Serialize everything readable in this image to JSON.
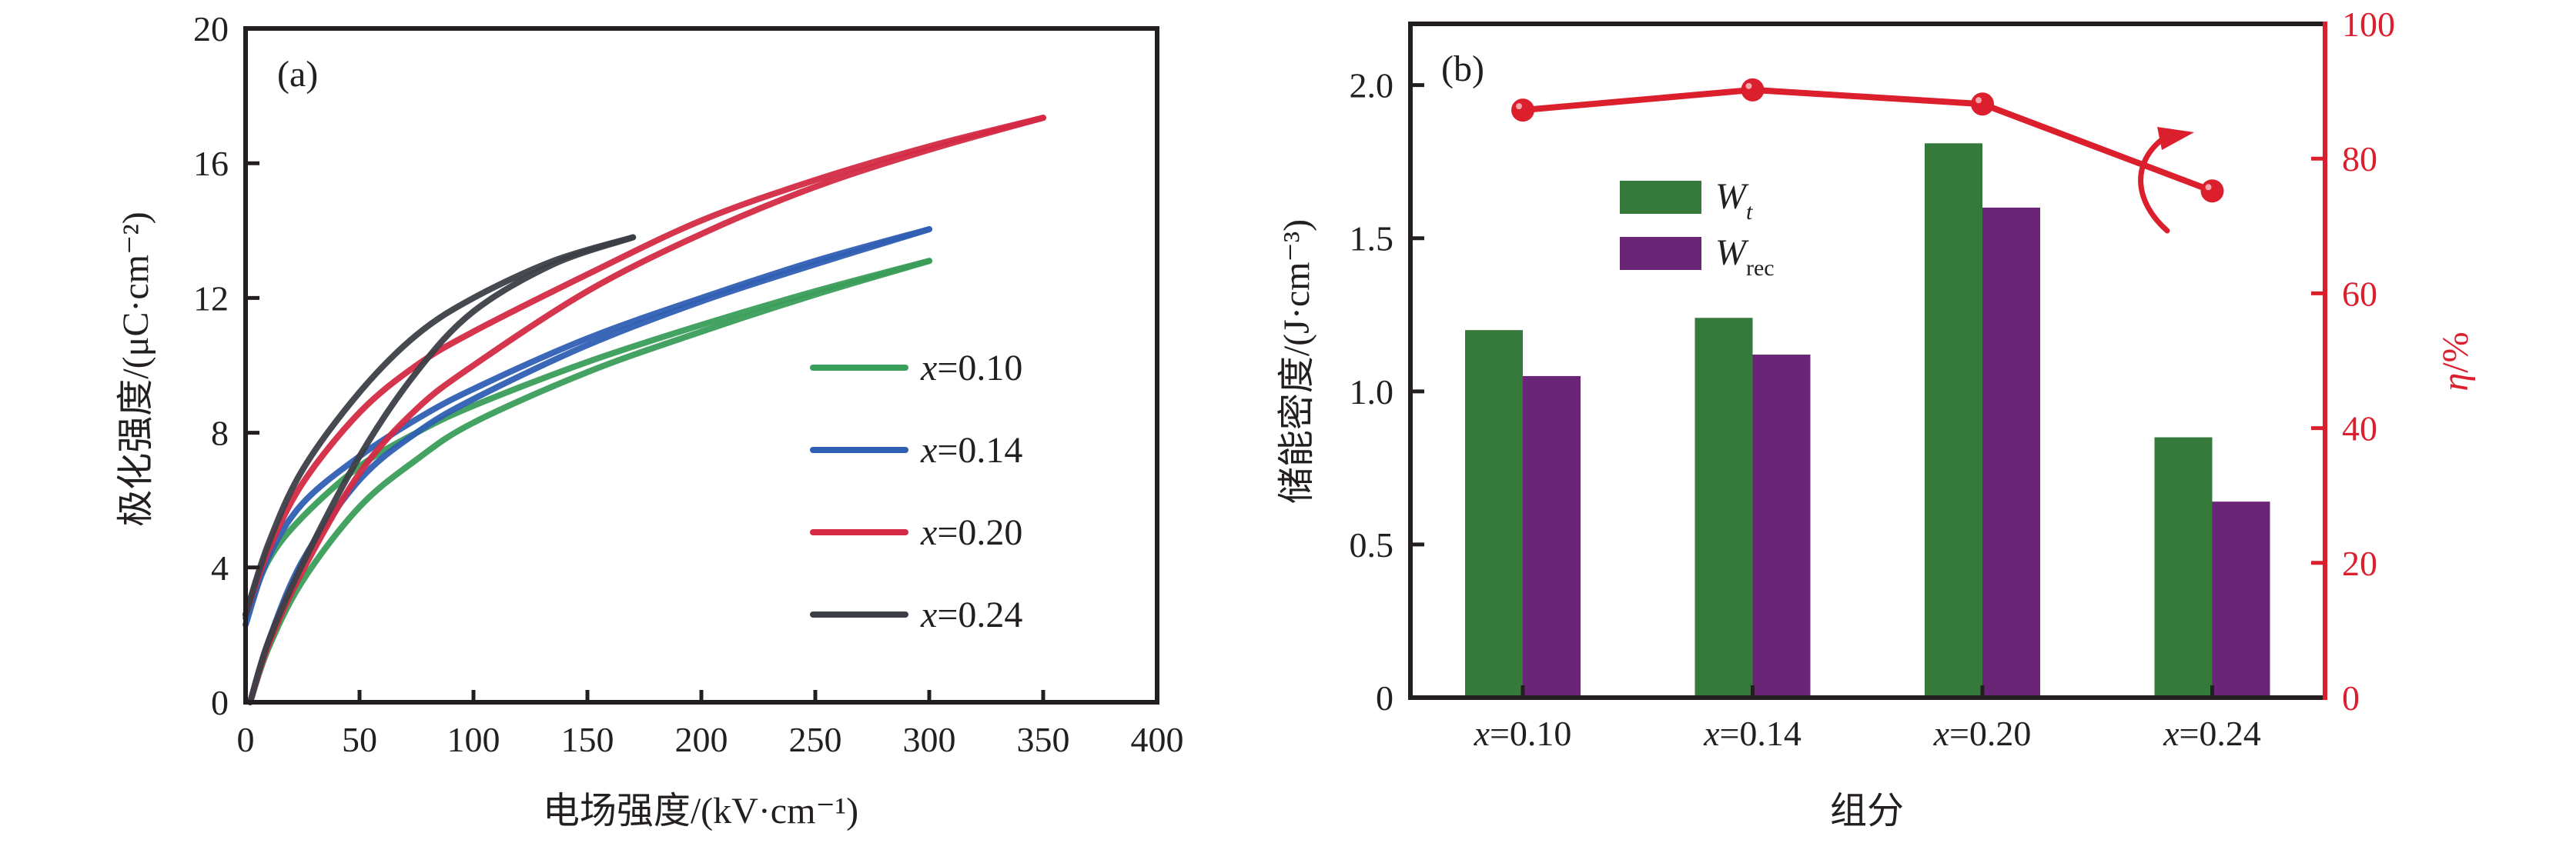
{
  "figure": {
    "panel_a_tag": "(a)",
    "panel_b_tag": "(b)"
  },
  "chart_data": [
    {
      "id": "a",
      "type": "line",
      "title": "",
      "xlabel": "电场强度/(kV·cm⁻¹)",
      "ylabel": "极化强度/(μC·cm⁻²)",
      "xlim": [
        0,
        400
      ],
      "ylim": [
        0,
        20
      ],
      "xticks": [
        0,
        50,
        100,
        150,
        200,
        250,
        300,
        350,
        400
      ],
      "yticks": [
        0,
        4,
        8,
        12,
        16,
        20
      ],
      "xtick_labels": [
        "0",
        "50",
        "100",
        "150",
        "200",
        "250",
        "300",
        "350",
        "400"
      ],
      "ytick_labels": [
        "0",
        "4",
        "8",
        "12",
        "16",
        "20"
      ],
      "grid": false,
      "legend_position": "center-right",
      "series": [
        {
          "name": "x=0.10",
          "legend_var": "x",
          "legend_value": "=0.10",
          "color": "#3a9e5a",
          "charge": [
            [
              2,
              0
            ],
            [
              10,
              1.6
            ],
            [
              25,
              3.6
            ],
            [
              50,
              5.8
            ],
            [
              75,
              7.2
            ],
            [
              100,
              8.3
            ],
            [
              150,
              9.8
            ],
            [
              200,
              11.0
            ],
            [
              250,
              12.1
            ],
            [
              300,
              13.1
            ]
          ],
          "discharge": [
            [
              300,
              13.1
            ],
            [
              250,
              12.2
            ],
            [
              200,
              11.2
            ],
            [
              150,
              10.1
            ],
            [
              100,
              8.8
            ],
            [
              75,
              8.0
            ],
            [
              50,
              7.0
            ],
            [
              25,
              5.5
            ],
            [
              10,
              4.2
            ],
            [
              0,
              2.5
            ]
          ]
        },
        {
          "name": "x=0.14",
          "legend_var": "x",
          "legend_value": "=0.14",
          "color": "#2f5fb3",
          "charge": [
            [
              2,
              0
            ],
            [
              10,
              1.8
            ],
            [
              25,
              4.2
            ],
            [
              50,
              6.6
            ],
            [
              75,
              8.0
            ],
            [
              100,
              9.0
            ],
            [
              150,
              10.6
            ],
            [
              200,
              11.9
            ],
            [
              250,
              13.0
            ],
            [
              300,
              14.04
            ]
          ],
          "discharge": [
            [
              300,
              14.04
            ],
            [
              250,
              13.1
            ],
            [
              200,
              12.0
            ],
            [
              150,
              10.8
            ],
            [
              100,
              9.3
            ],
            [
              75,
              8.4
            ],
            [
              50,
              7.3
            ],
            [
              25,
              5.9
            ],
            [
              10,
              4.3
            ],
            [
              0,
              2.3
            ]
          ]
        },
        {
          "name": "x=0.20",
          "legend_var": "x",
          "legend_value": "=0.20",
          "color": "#d42a45",
          "charge": [
            [
              2,
              0
            ],
            [
              10,
              1.7
            ],
            [
              25,
              3.9
            ],
            [
              50,
              6.8
            ],
            [
              75,
              8.7
            ],
            [
              100,
              10.0
            ],
            [
              150,
              12.2
            ],
            [
              200,
              13.9
            ],
            [
              250,
              15.3
            ],
            [
              300,
              16.4
            ],
            [
              350,
              17.35
            ]
          ],
          "discharge": [
            [
              350,
              17.35
            ],
            [
              300,
              16.5
            ],
            [
              250,
              15.5
            ],
            [
              200,
              14.3
            ],
            [
              150,
              12.7
            ],
            [
              100,
              11.0
            ],
            [
              75,
              10.0
            ],
            [
              50,
              8.6
            ],
            [
              25,
              6.5
            ],
            [
              10,
              4.5
            ],
            [
              0,
              2.6
            ]
          ]
        },
        {
          "name": "x=0.24",
          "legend_var": "x",
          "legend_value": "=0.24",
          "color": "#3c3f46",
          "charge": [
            [
              2,
              0
            ],
            [
              10,
              1.8
            ],
            [
              25,
              4.1
            ],
            [
              50,
              7.3
            ],
            [
              75,
              9.8
            ],
            [
              100,
              11.6
            ],
            [
              135,
              13.0
            ],
            [
              170,
              13.8
            ]
          ],
          "discharge": [
            [
              170,
              13.8
            ],
            [
              135,
              13.1
            ],
            [
              100,
              12.0
            ],
            [
              75,
              10.9
            ],
            [
              50,
              9.2
            ],
            [
              25,
              6.9
            ],
            [
              10,
              4.7
            ],
            [
              0,
              2.6
            ]
          ]
        }
      ]
    },
    {
      "id": "b",
      "type": "bar",
      "title": "",
      "xlabel": "组分",
      "ylabel": "储能密度/(J·cm⁻³)",
      "y2label_var": "η",
      "y2label_unit": "/%",
      "categories": [
        "x=0.10",
        "x=0.14",
        "x=0.20",
        "x=0.24"
      ],
      "category_var": "x",
      "category_values": [
        "=0.10",
        "=0.14",
        "=0.20",
        "=0.24"
      ],
      "ylim": [
        0,
        2.2
      ],
      "yticks": [
        0,
        0.5,
        1.0,
        1.5,
        2.0
      ],
      "ytick_labels": [
        "0",
        "0.5",
        "1.0",
        "1.5",
        "2.0"
      ],
      "y2lim": [
        0,
        100
      ],
      "y2ticks": [
        0,
        20,
        40,
        60,
        80,
        100
      ],
      "y2tick_labels": [
        "0",
        "20",
        "40",
        "60",
        "80",
        "100"
      ],
      "grid": false,
      "legend_position": "upper-left",
      "series": [
        {
          "name": "Wt",
          "legend_main": "W",
          "legend_sub": "t",
          "sub_italic": true,
          "color": "#367a3b",
          "axis": "left",
          "values": [
            1.2,
            1.24,
            1.81,
            0.85
          ]
        },
        {
          "name": "Wrec",
          "legend_main": "W",
          "legend_sub": "rec",
          "sub_italic": false,
          "color": "#6a2576",
          "axis": "left",
          "values": [
            1.05,
            1.12,
            1.6,
            0.64
          ]
        }
      ],
      "line_series": {
        "name": "η",
        "axis": "right",
        "color": "#dc1f2d",
        "values": [
          87.2,
          90.2,
          88.1,
          75.2
        ]
      },
      "annotation": "curved arrow pointing to right axis (η)"
    }
  ]
}
